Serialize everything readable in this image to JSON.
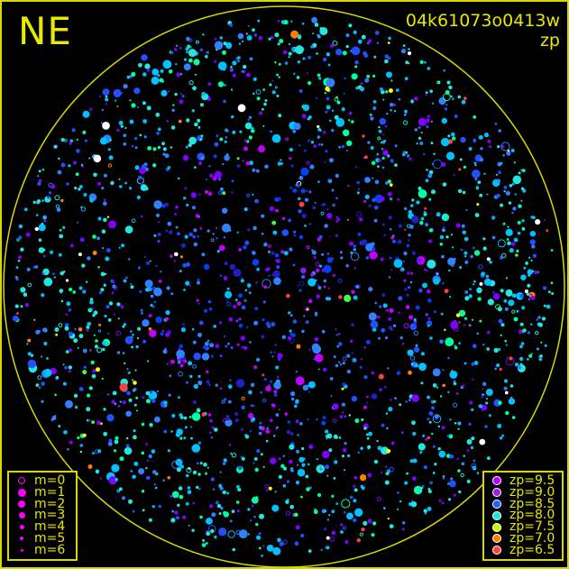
{
  "header": {
    "direction": "NE",
    "frame_id": "04k61073o0413w",
    "mode": "zp"
  },
  "magnitude_legend": [
    {
      "label": "m=0",
      "size": 8,
      "hollow": true
    },
    {
      "label": "m=1",
      "size": 9
    },
    {
      "label": "m=2",
      "size": 8
    },
    {
      "label": "m=3",
      "size": 7
    },
    {
      "label": "m=4",
      "size": 5
    },
    {
      "label": "m=5",
      "size": 4
    },
    {
      "label": "m=6",
      "size": 3
    }
  ],
  "zp_legend": [
    {
      "label": "zp=9.5",
      "color": "#c000ff"
    },
    {
      "label": "zp=9.0",
      "color": "#a020e0"
    },
    {
      "label": "zp=8.5",
      "color": "#2060ff"
    },
    {
      "label": "zp=8.0",
      "color": "#20e8d0"
    },
    {
      "label": "zp=7.5",
      "color": "#c0ff00"
    },
    {
      "label": "zp=7.0",
      "color": "#ff8000"
    },
    {
      "label": "zp=6.5",
      "color": "#ff4040"
    }
  ],
  "colors": {
    "frame": "#d8d800",
    "background": "#000000",
    "marker": "#ff00ff"
  }
}
